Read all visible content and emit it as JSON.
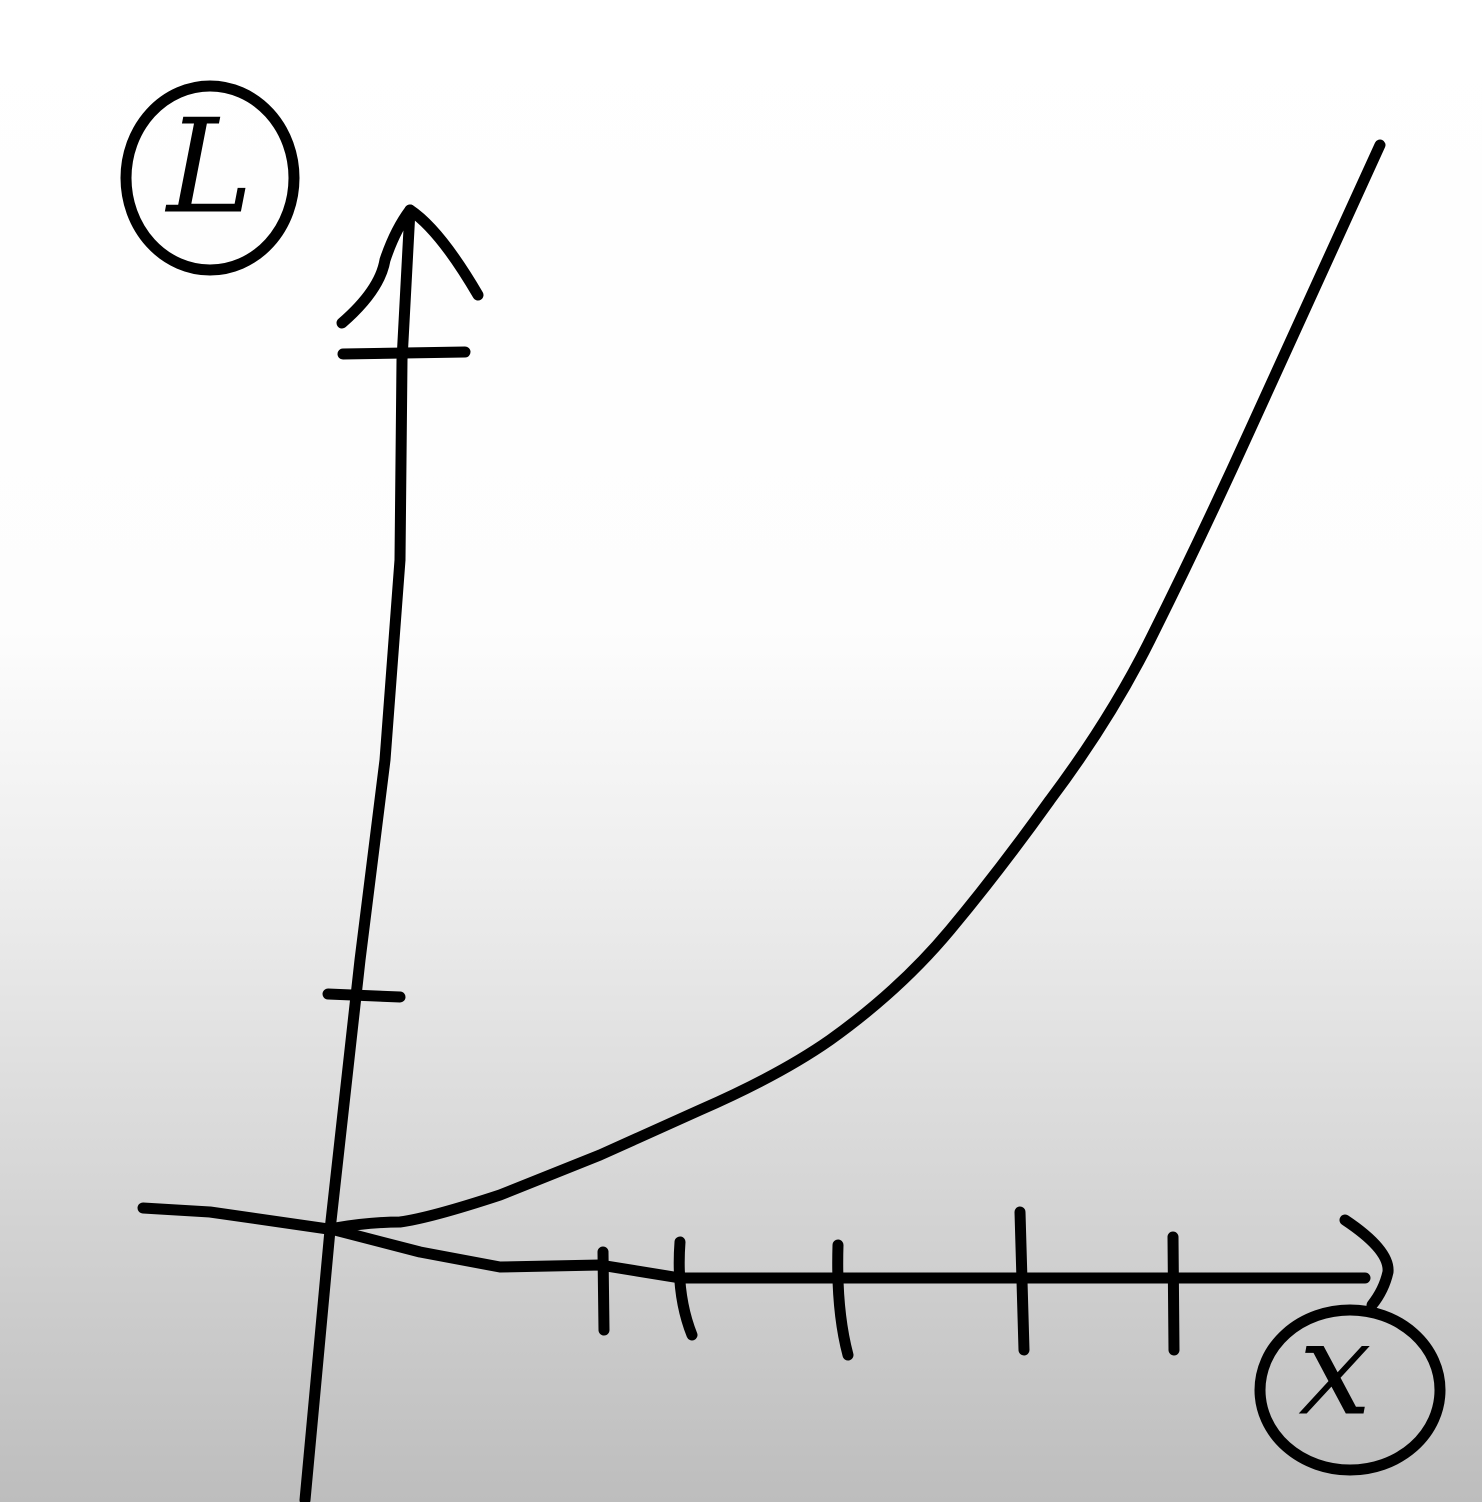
{
  "labels": {
    "y_axis": "L",
    "x_axis": "x"
  }
}
